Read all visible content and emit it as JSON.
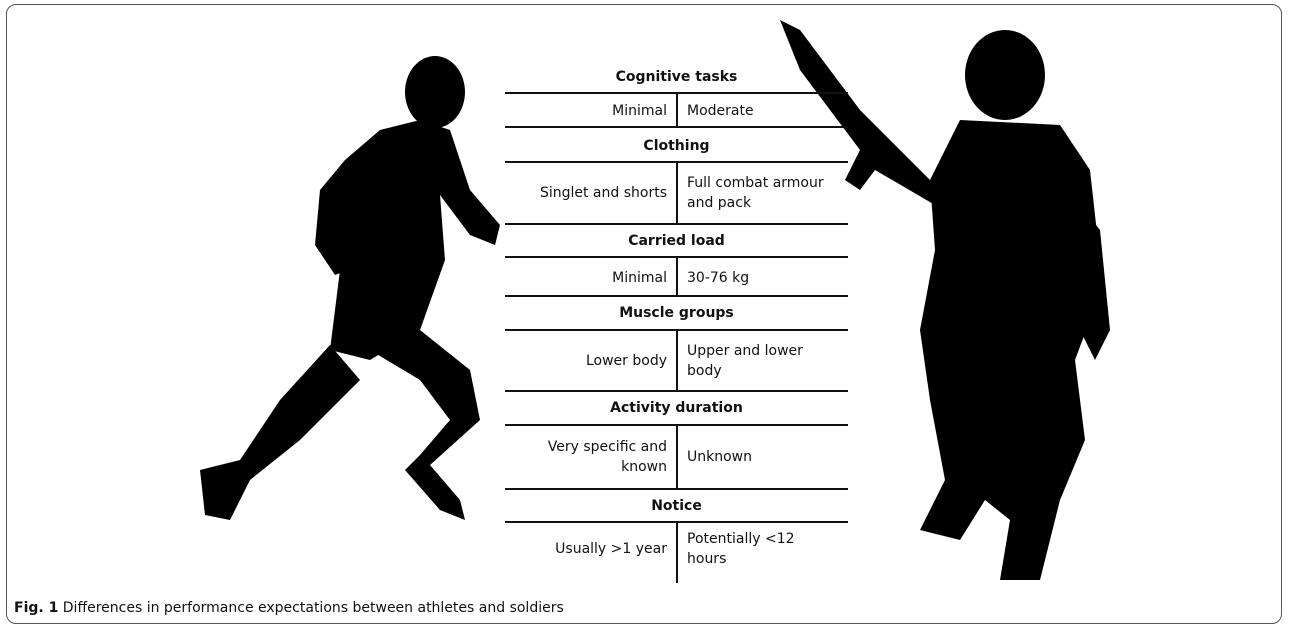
{
  "figure": {
    "sections": [
      {
        "title": "Cognitive tasks",
        "athlete": "Minimal",
        "soldier": "Moderate"
      },
      {
        "title": "Clothing",
        "athlete": "Singlet and shorts",
        "soldier": "Full combat armour and pack"
      },
      {
        "title": "Carried load",
        "athlete": "Minimal",
        "soldier": "30-76 kg"
      },
      {
        "title": "Muscle groups",
        "athlete": "Lower body",
        "soldier": "Upper and lower body"
      },
      {
        "title": "Activity duration",
        "athlete": "Very specific and known",
        "soldier": "Unknown"
      },
      {
        "title": "Notice",
        "athlete": "Usually >1 year",
        "soldier": "Potentially <12 hours"
      }
    ],
    "caption": {
      "label": "Fig. 1",
      "text": "Differences in performance expectations between athletes and soldiers"
    }
  }
}
